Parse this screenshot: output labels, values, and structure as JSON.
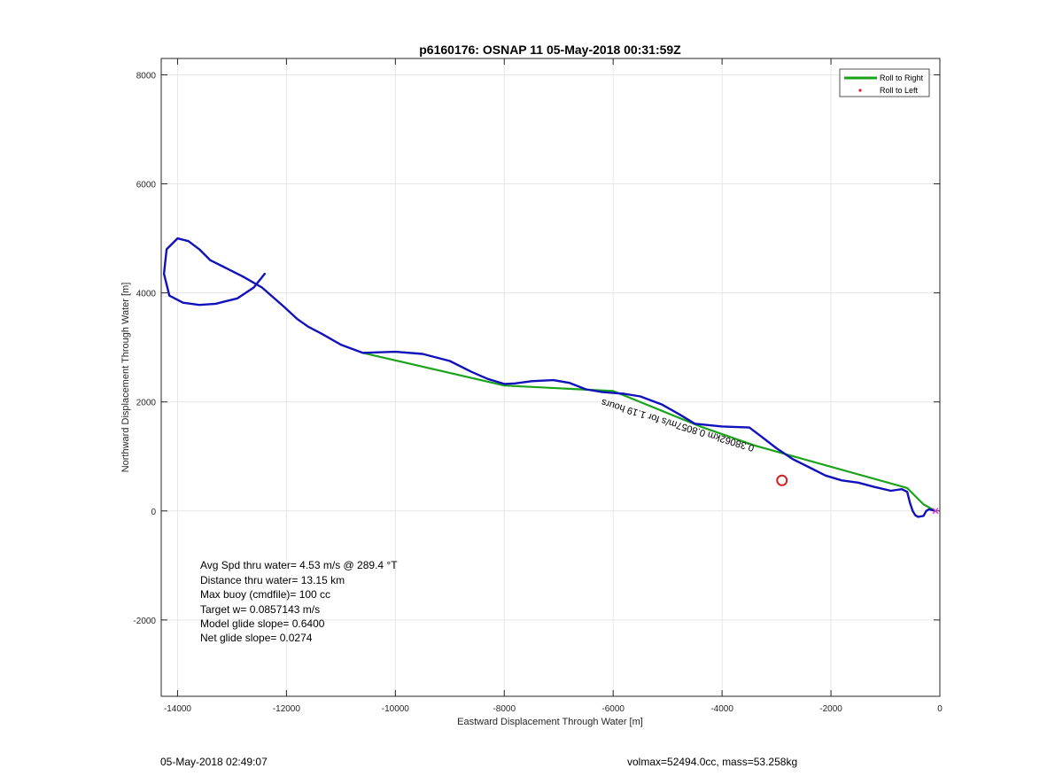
{
  "chart_data": {
    "type": "line",
    "title": "p6160176: OSNAP 11 05-May-2018 00:31:59Z",
    "xlabel": "Eastward Displacement Through Water [m]",
    "ylabel": "Northward Displacement Through Water [m]",
    "xlim": [
      -14300,
      0
    ],
    "ylim": [
      -3400,
      8300
    ],
    "xticks": [
      -14000,
      -12000,
      -10000,
      -8000,
      -6000,
      -4000,
      -2000,
      0
    ],
    "yticks": [
      -2000,
      0,
      2000,
      4000,
      6000,
      8000
    ],
    "grid": true,
    "legend": {
      "placement": "top-right",
      "entries": [
        {
          "label": "Roll to Right",
          "color": "#1aa31a",
          "marker": "line"
        },
        {
          "label": "Roll to Left",
          "color": "#e02020",
          "marker": "dot"
        }
      ]
    },
    "series": [
      {
        "name": "Roll to Right",
        "style": "green-line",
        "color": "#1aa31a",
        "x": [
          -10600,
          -8000,
          -6000,
          -4400,
          -3400,
          -600,
          -300,
          -100
        ],
        "y": [
          2900,
          2300,
          2200,
          1550,
          1200,
          420,
          120,
          10
        ]
      },
      {
        "style": "blue-track",
        "color": "#1111bb",
        "x": [
          -12400,
          -12600,
          -12900,
          -13300,
          -13600,
          -13900,
          -14150,
          -14250,
          -14200,
          -14000,
          -13800,
          -13600,
          -13400,
          -13100,
          -12800,
          -12450,
          -12050,
          -11800,
          -11600,
          -11350,
          -11000,
          -10600,
          -10000,
          -9500,
          -9000,
          -8600,
          -8300,
          -8000,
          -7800,
          -7500,
          -7100,
          -6800,
          -6500,
          -6200,
          -5800,
          -5500,
          -5100,
          -4800,
          -4500,
          -4000,
          -3500,
          -3300,
          -3000,
          -2700,
          -2400,
          -2100,
          -1800,
          -1500,
          -1200,
          -900,
          -700,
          -600,
          -550,
          -500,
          -450,
          -400,
          -300,
          -250,
          -200,
          -120
        ],
        "y": [
          4350,
          4100,
          3900,
          3800,
          3780,
          3820,
          3950,
          4350,
          4800,
          5000,
          4950,
          4800,
          4600,
          4450,
          4300,
          4100,
          3750,
          3520,
          3380,
          3250,
          3050,
          2900,
          2920,
          2880,
          2750,
          2550,
          2420,
          2330,
          2340,
          2380,
          2400,
          2350,
          2230,
          2180,
          2150,
          2100,
          1950,
          1780,
          1600,
          1550,
          1530,
          1380,
          1150,
          950,
          800,
          650,
          560,
          520,
          440,
          370,
          400,
          350,
          150,
          0,
          -80,
          -110,
          -90,
          0,
          30,
          10
        ]
      }
    ],
    "markers": [
      {
        "x": -2900,
        "y": 560,
        "style": "red-circle",
        "color": "#d42020"
      },
      {
        "x": -80,
        "y": 0,
        "style": "magenta-x",
        "color": "#e030e0"
      }
    ],
    "rotated_annotation": {
      "text": "0.38062km 0.8057m/s for 1.19 hours",
      "x": -3400,
      "y": 1200,
      "angle": 197
    },
    "inset_text": [
      "Avg Spd thru water=  4.53 m/s @ 289.4 °T",
      "Distance thru water= 13.15 km",
      "Max buoy (cmdfile)= 100 cc",
      "Target w= 0.0857143 m/s",
      "Model glide slope= 0.6400",
      "Net glide slope= 0.0274"
    ]
  },
  "footer": {
    "left": "05-May-2018 02:49:07",
    "right": "volmax=52494.0cc, mass=53.258kg"
  }
}
